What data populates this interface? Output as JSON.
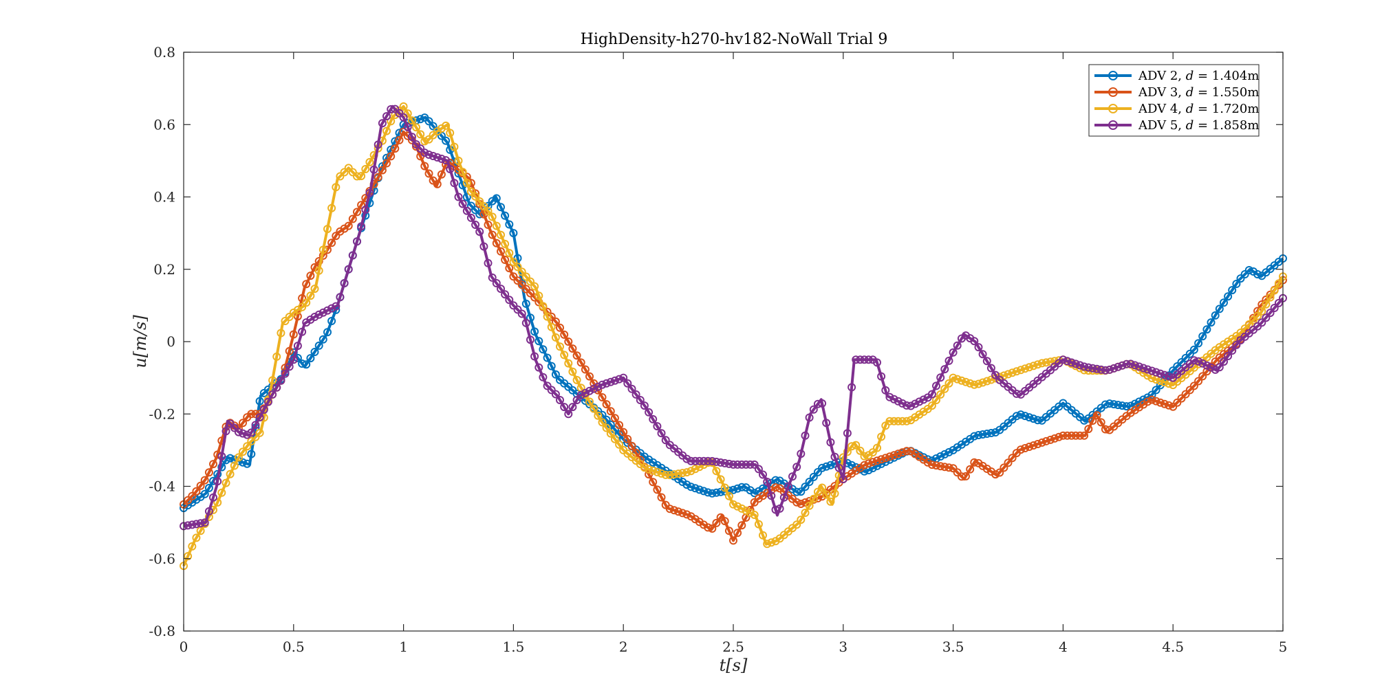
{
  "chart_data": {
    "type": "line",
    "title": "HighDensity-h270-hv182-NoWall Trial 9",
    "xlabel_var": "t",
    "xlabel_unit": "[s]",
    "ylabel_var": "u",
    "ylabel_unit": "[m/s]",
    "xlim": [
      0,
      5
    ],
    "ylim": [
      -0.8,
      0.8
    ],
    "xticks": [
      0,
      0.5,
      1,
      1.5,
      2,
      2.5,
      3,
      3.5,
      4,
      4.5,
      5
    ],
    "yticks": [
      -0.8,
      -0.6,
      -0.4,
      -0.2,
      0,
      0.2,
      0.4,
      0.6,
      0.8
    ],
    "xtick_labels": [
      "0",
      "0.5",
      "1",
      "1.5",
      "2",
      "2.5",
      "3",
      "3.5",
      "4",
      "4.5",
      "5"
    ],
    "ytick_labels": [
      "-0.8",
      "-0.6",
      "-0.4",
      "-0.2",
      "0",
      "0.2",
      "0.4",
      "0.6",
      "0.8"
    ],
    "grid": false,
    "legend_position": "top-right",
    "marker": "circle",
    "series": [
      {
        "name": "ADV 2, d = 1.404m",
        "legend_prefix": "ADV 2, ",
        "legend_var": "d",
        "legend_suffix": " = 1.404m",
        "color": "#0072BD",
        "points": [
          [
            0,
            -0.46
          ],
          [
            0.1,
            -0.42
          ],
          [
            0.2,
            -0.32
          ],
          [
            0.3,
            -0.34
          ],
          [
            0.35,
            -0.15
          ],
          [
            0.45,
            -0.1
          ],
          [
            0.5,
            -0.03
          ],
          [
            0.55,
            -0.07
          ],
          [
            0.65,
            0.02
          ],
          [
            0.7,
            0.1
          ],
          [
            0.8,
            0.3
          ],
          [
            0.9,
            0.48
          ],
          [
            1.0,
            0.6
          ],
          [
            1.1,
            0.62
          ],
          [
            1.2,
            0.55
          ],
          [
            1.3,
            0.38
          ],
          [
            1.35,
            0.35
          ],
          [
            1.42,
            0.4
          ],
          [
            1.5,
            0.3
          ],
          [
            1.55,
            0.12
          ],
          [
            1.6,
            0.02
          ],
          [
            1.7,
            -0.1
          ],
          [
            1.8,
            -0.15
          ],
          [
            1.9,
            -0.2
          ],
          [
            2.0,
            -0.27
          ],
          [
            2.1,
            -0.32
          ],
          [
            2.2,
            -0.36
          ],
          [
            2.3,
            -0.4
          ],
          [
            2.4,
            -0.42
          ],
          [
            2.5,
            -0.41
          ],
          [
            2.55,
            -0.4
          ],
          [
            2.6,
            -0.42
          ],
          [
            2.7,
            -0.38
          ],
          [
            2.8,
            -0.42
          ],
          [
            2.9,
            -0.35
          ],
          [
            3.0,
            -0.33
          ],
          [
            3.1,
            -0.36
          ],
          [
            3.2,
            -0.33
          ],
          [
            3.3,
            -0.3
          ],
          [
            3.4,
            -0.33
          ],
          [
            3.5,
            -0.3
          ],
          [
            3.6,
            -0.26
          ],
          [
            3.7,
            -0.25
          ],
          [
            3.8,
            -0.2
          ],
          [
            3.9,
            -0.22
          ],
          [
            4.0,
            -0.17
          ],
          [
            4.1,
            -0.22
          ],
          [
            4.2,
            -0.17
          ],
          [
            4.3,
            -0.18
          ],
          [
            4.4,
            -0.15
          ],
          [
            4.5,
            -0.08
          ],
          [
            4.6,
            -0.02
          ],
          [
            4.7,
            0.08
          ],
          [
            4.8,
            0.17
          ],
          [
            4.85,
            0.2
          ],
          [
            4.9,
            0.18
          ],
          [
            5.0,
            0.23
          ]
        ]
      },
      {
        "name": "ADV 3, d = 1.550m",
        "legend_prefix": "ADV 3, ",
        "legend_var": "d",
        "legend_suffix": " = 1.550m",
        "color": "#D95319",
        "points": [
          [
            0,
            -0.45
          ],
          [
            0.05,
            -0.42
          ],
          [
            0.1,
            -0.38
          ],
          [
            0.15,
            -0.32
          ],
          [
            0.2,
            -0.22
          ],
          [
            0.25,
            -0.24
          ],
          [
            0.3,
            -0.2
          ],
          [
            0.35,
            -0.2
          ],
          [
            0.4,
            -0.15
          ],
          [
            0.45,
            -0.1
          ],
          [
            0.5,
            0.02
          ],
          [
            0.55,
            0.15
          ],
          [
            0.6,
            0.21
          ],
          [
            0.65,
            0.25
          ],
          [
            0.7,
            0.3
          ],
          [
            0.75,
            0.32
          ],
          [
            0.85,
            0.42
          ],
          [
            0.95,
            0.52
          ],
          [
            1.0,
            0.58
          ],
          [
            1.05,
            0.55
          ],
          [
            1.1,
            0.48
          ],
          [
            1.15,
            0.43
          ],
          [
            1.2,
            0.5
          ],
          [
            1.3,
            0.45
          ],
          [
            1.4,
            0.3
          ],
          [
            1.5,
            0.18
          ],
          [
            1.6,
            0.12
          ],
          [
            1.7,
            0.05
          ],
          [
            1.8,
            -0.05
          ],
          [
            1.9,
            -0.15
          ],
          [
            2.0,
            -0.25
          ],
          [
            2.1,
            -0.35
          ],
          [
            2.2,
            -0.46
          ],
          [
            2.3,
            -0.48
          ],
          [
            2.4,
            -0.52
          ],
          [
            2.45,
            -0.48
          ],
          [
            2.5,
            -0.55
          ],
          [
            2.6,
            -0.44
          ],
          [
            2.7,
            -0.4
          ],
          [
            2.8,
            -0.45
          ],
          [
            2.9,
            -0.43
          ],
          [
            3.0,
            -0.38
          ],
          [
            3.1,
            -0.34
          ],
          [
            3.2,
            -0.32
          ],
          [
            3.3,
            -0.3
          ],
          [
            3.4,
            -0.34
          ],
          [
            3.5,
            -0.35
          ],
          [
            3.55,
            -0.38
          ],
          [
            3.6,
            -0.33
          ],
          [
            3.7,
            -0.37
          ],
          [
            3.8,
            -0.3
          ],
          [
            3.9,
            -0.28
          ],
          [
            4.0,
            -0.26
          ],
          [
            4.1,
            -0.26
          ],
          [
            4.15,
            -0.2
          ],
          [
            4.2,
            -0.25
          ],
          [
            4.3,
            -0.2
          ],
          [
            4.4,
            -0.16
          ],
          [
            4.5,
            -0.18
          ],
          [
            4.6,
            -0.12
          ],
          [
            4.7,
            -0.05
          ],
          [
            4.8,
            0.0
          ],
          [
            4.9,
            0.1
          ],
          [
            5.0,
            0.17
          ]
        ]
      },
      {
        "name": "ADV 4, d = 1.720m",
        "legend_prefix": "ADV 4, ",
        "legend_var": "d",
        "legend_suffix": " = 1.720m",
        "color": "#EDB120",
        "points": [
          [
            0,
            -0.62
          ],
          [
            0.05,
            -0.55
          ],
          [
            0.1,
            -0.5
          ],
          [
            0.15,
            -0.45
          ],
          [
            0.2,
            -0.38
          ],
          [
            0.25,
            -0.32
          ],
          [
            0.3,
            -0.28
          ],
          [
            0.35,
            -0.25
          ],
          [
            0.4,
            -0.12
          ],
          [
            0.45,
            0.05
          ],
          [
            0.5,
            0.08
          ],
          [
            0.55,
            0.1
          ],
          [
            0.6,
            0.15
          ],
          [
            0.65,
            0.3
          ],
          [
            0.7,
            0.45
          ],
          [
            0.75,
            0.48
          ],
          [
            0.8,
            0.45
          ],
          [
            0.85,
            0.5
          ],
          [
            0.9,
            0.55
          ],
          [
            0.95,
            0.62
          ],
          [
            1.0,
            0.65
          ],
          [
            1.05,
            0.6
          ],
          [
            1.1,
            0.55
          ],
          [
            1.15,
            0.58
          ],
          [
            1.2,
            0.6
          ],
          [
            1.25,
            0.5
          ],
          [
            1.3,
            0.42
          ],
          [
            1.4,
            0.35
          ],
          [
            1.5,
            0.22
          ],
          [
            1.6,
            0.15
          ],
          [
            1.7,
            0.0
          ],
          [
            1.8,
            -0.12
          ],
          [
            1.9,
            -0.22
          ],
          [
            2.0,
            -0.3
          ],
          [
            2.1,
            -0.35
          ],
          [
            2.2,
            -0.37
          ],
          [
            2.3,
            -0.36
          ],
          [
            2.4,
            -0.33
          ],
          [
            2.5,
            -0.45
          ],
          [
            2.6,
            -0.48
          ],
          [
            2.65,
            -0.56
          ],
          [
            2.7,
            -0.55
          ],
          [
            2.8,
            -0.5
          ],
          [
            2.9,
            -0.4
          ],
          [
            2.95,
            -0.45
          ],
          [
            3.0,
            -0.32
          ],
          [
            3.05,
            -0.28
          ],
          [
            3.1,
            -0.32
          ],
          [
            3.15,
            -0.3
          ],
          [
            3.2,
            -0.22
          ],
          [
            3.3,
            -0.22
          ],
          [
            3.4,
            -0.18
          ],
          [
            3.5,
            -0.1
          ],
          [
            3.6,
            -0.12
          ],
          [
            3.7,
            -0.1
          ],
          [
            3.8,
            -0.08
          ],
          [
            3.9,
            -0.06
          ],
          [
            4.0,
            -0.05
          ],
          [
            4.1,
            -0.08
          ],
          [
            4.2,
            -0.08
          ],
          [
            4.3,
            -0.06
          ],
          [
            4.4,
            -0.1
          ],
          [
            4.5,
            -0.12
          ],
          [
            4.6,
            -0.07
          ],
          [
            4.7,
            -0.02
          ],
          [
            4.8,
            0.02
          ],
          [
            4.9,
            0.08
          ],
          [
            5.0,
            0.18
          ]
        ]
      },
      {
        "name": "ADV 5, d = 1.858m",
        "legend_prefix": "ADV 5, ",
        "legend_var": "d",
        "legend_suffix": " = 1.858m",
        "color": "#7E2F8E",
        "points": [
          [
            0,
            -0.51
          ],
          [
            0.1,
            -0.5
          ],
          [
            0.15,
            -0.4
          ],
          [
            0.2,
            -0.22
          ],
          [
            0.25,
            -0.25
          ],
          [
            0.3,
            -0.26
          ],
          [
            0.4,
            -0.15
          ],
          [
            0.5,
            -0.05
          ],
          [
            0.55,
            0.05
          ],
          [
            0.6,
            0.07
          ],
          [
            0.7,
            0.1
          ],
          [
            0.8,
            0.3
          ],
          [
            0.85,
            0.42
          ],
          [
            0.9,
            0.6
          ],
          [
            0.95,
            0.65
          ],
          [
            1.0,
            0.62
          ],
          [
            1.05,
            0.55
          ],
          [
            1.1,
            0.52
          ],
          [
            1.2,
            0.5
          ],
          [
            1.25,
            0.4
          ],
          [
            1.3,
            0.35
          ],
          [
            1.35,
            0.3
          ],
          [
            1.4,
            0.18
          ],
          [
            1.5,
            0.1
          ],
          [
            1.55,
            0.07
          ],
          [
            1.6,
            -0.05
          ],
          [
            1.65,
            -0.12
          ],
          [
            1.7,
            -0.15
          ],
          [
            1.75,
            -0.2
          ],
          [
            1.8,
            -0.15
          ],
          [
            1.9,
            -0.12
          ],
          [
            2.0,
            -0.1
          ],
          [
            2.1,
            -0.18
          ],
          [
            2.2,
            -0.28
          ],
          [
            2.3,
            -0.33
          ],
          [
            2.4,
            -0.33
          ],
          [
            2.5,
            -0.34
          ],
          [
            2.6,
            -0.34
          ],
          [
            2.65,
            -0.38
          ],
          [
            2.7,
            -0.48
          ],
          [
            2.75,
            -0.4
          ],
          [
            2.8,
            -0.33
          ],
          [
            2.85,
            -0.2
          ],
          [
            2.9,
            -0.16
          ],
          [
            2.95,
            -0.3
          ],
          [
            3.0,
            -0.38
          ],
          [
            3.05,
            -0.05
          ],
          [
            3.1,
            -0.05
          ],
          [
            3.15,
            -0.05
          ],
          [
            3.2,
            -0.15
          ],
          [
            3.3,
            -0.18
          ],
          [
            3.4,
            -0.15
          ],
          [
            3.5,
            -0.03
          ],
          [
            3.55,
            0.02
          ],
          [
            3.6,
            0.0
          ],
          [
            3.7,
            -0.1
          ],
          [
            3.8,
            -0.15
          ],
          [
            3.9,
            -0.1
          ],
          [
            4.0,
            -0.05
          ],
          [
            4.1,
            -0.07
          ],
          [
            4.2,
            -0.08
          ],
          [
            4.3,
            -0.06
          ],
          [
            4.4,
            -0.08
          ],
          [
            4.5,
            -0.1
          ],
          [
            4.6,
            -0.05
          ],
          [
            4.7,
            -0.08
          ],
          [
            4.8,
            0.0
          ],
          [
            4.9,
            0.05
          ],
          [
            5.0,
            0.12
          ]
        ]
      }
    ]
  }
}
